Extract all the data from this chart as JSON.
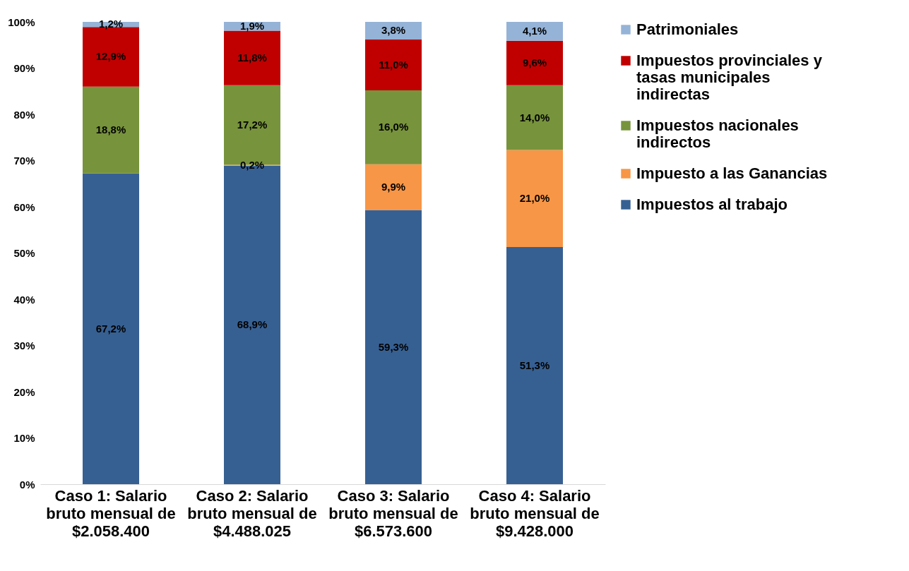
{
  "chart_data": {
    "type": "bar",
    "stacked": true,
    "categories": [
      "Caso 1: Salario bruto mensual de $2.058.400",
      "Caso 2: Salario bruto mensual de $4.488.025",
      "Caso 3: Salario bruto mensual de $6.573.600",
      "Caso 4: Salario bruto mensual de $9.428.000"
    ],
    "series": [
      {
        "name": "Impuestos al trabajo",
        "color": "#376092",
        "values": [
          67.2,
          68.9,
          59.3,
          51.3
        ],
        "value_labels": [
          "67,2%",
          "68,9%",
          "59,3%",
          "51,3%"
        ]
      },
      {
        "name": "Impuesto a las Ganancias",
        "color": "#f79646",
        "values": [
          null,
          0.2,
          9.9,
          21.0
        ],
        "value_labels": [
          null,
          "0,2%",
          "9,9%",
          "21,0%"
        ]
      },
      {
        "name": "Impuestos nacionales indirectos",
        "color": "#77933c",
        "values": [
          18.8,
          17.2,
          16.0,
          14.0
        ],
        "value_labels": [
          "18,8%",
          "17,2%",
          "16,0%",
          "14,0%"
        ]
      },
      {
        "name": "Impuestos provinciales y tasas municipales indirectas",
        "color": "#c00000",
        "values": [
          12.9,
          11.8,
          11.0,
          9.6
        ],
        "value_labels": [
          "12,9%",
          "11,8%",
          "11,0%",
          "9,6%"
        ]
      },
      {
        "name": "Patrimoniales",
        "color": "#95b3d7",
        "values": [
          1.2,
          1.9,
          3.8,
          4.1
        ],
        "value_labels": [
          "1,2%",
          "1,9%",
          "3,8%",
          "4,1%"
        ]
      }
    ],
    "ylim": [
      0,
      100
    ],
    "yticks": [
      {
        "value": 0,
        "label": "0%"
      },
      {
        "value": 10,
        "label": "10%"
      },
      {
        "value": 20,
        "label": "20%"
      },
      {
        "value": 30,
        "label": "30%"
      },
      {
        "value": 40,
        "label": "40%"
      },
      {
        "value": 50,
        "label": "50%"
      },
      {
        "value": 60,
        "label": "60%"
      },
      {
        "value": 70,
        "label": "70%"
      },
      {
        "value": 80,
        "label": "80%"
      },
      {
        "value": 90,
        "label": "90%"
      },
      {
        "value": 100,
        "label": "100%"
      }
    ],
    "grid": false,
    "legend": "right"
  }
}
